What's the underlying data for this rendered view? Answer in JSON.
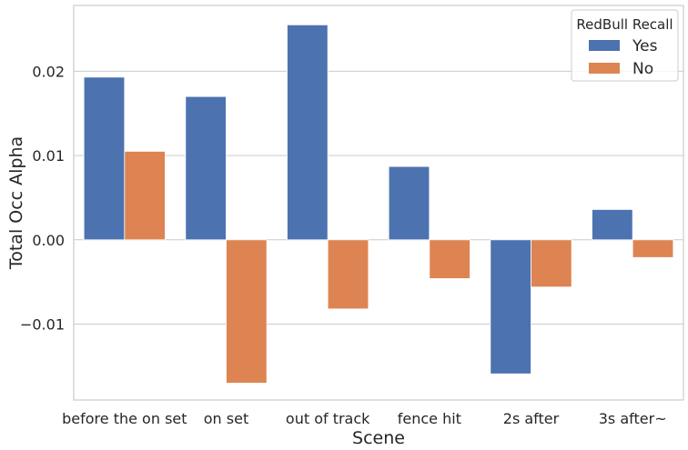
{
  "chart_data": {
    "type": "bar",
    "xlabel": "Scene",
    "ylabel": "Total Occ Alpha",
    "categories": [
      "before the on set",
      "on set",
      "out of track",
      "fence hit",
      "2s after",
      "3s after~"
    ],
    "series": [
      {
        "name": "Yes",
        "color": "#4c72b0",
        "values": [
          0.0193,
          0.017,
          0.0255,
          0.0087,
          -0.0159,
          0.0036
        ]
      },
      {
        "name": "No",
        "color": "#dd8452",
        "values": [
          0.0105,
          -0.017,
          -0.0082,
          -0.0046,
          -0.0056,
          -0.0021
        ]
      }
    ],
    "ylim": [
      -0.019,
      0.0278
    ],
    "yticks": [
      -0.01,
      0.0,
      0.01,
      0.02
    ],
    "ytick_labels": [
      "−0.01",
      "0.00",
      "0.01",
      "0.02"
    ],
    "grid": "horizontal",
    "legend": {
      "title": "RedBull Recall",
      "placement": "top-right"
    }
  }
}
